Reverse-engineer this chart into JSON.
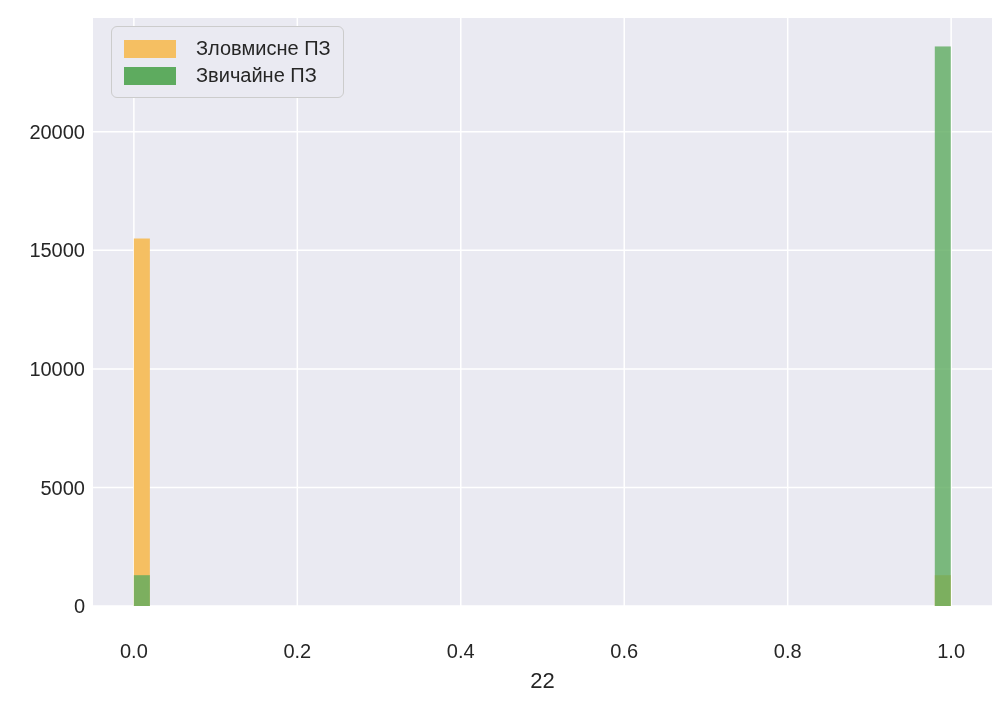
{
  "chart_data": {
    "type": "histogram",
    "xlabel": "22",
    "bins": [
      0,
      0.02,
      0.04,
      0.06,
      0.08,
      0.1,
      0.12,
      0.14,
      0.16,
      0.18,
      0.2,
      0.22,
      0.24,
      0.26,
      0.28,
      0.3,
      0.32,
      0.34,
      0.36,
      0.38,
      0.4,
      0.42,
      0.44,
      0.46,
      0.48,
      0.5,
      0.52,
      0.54,
      0.56,
      0.58,
      0.6,
      0.62,
      0.64,
      0.66,
      0.68,
      0.7,
      0.72,
      0.74,
      0.76,
      0.78,
      0.8,
      0.82,
      0.84,
      0.86,
      0.88,
      0.9,
      0.92,
      0.94,
      0.96,
      0.98,
      1
    ],
    "series": [
      {
        "name": "Зловмисне ПЗ",
        "color": "#f5bf62",
        "values": [
          15500,
          0,
          0,
          0,
          0,
          0,
          0,
          0,
          0,
          0,
          0,
          0,
          0,
          0,
          0,
          0,
          0,
          0,
          0,
          0,
          0,
          0,
          0,
          0,
          0,
          0,
          0,
          0,
          0,
          0,
          0,
          0,
          0,
          0,
          0,
          0,
          0,
          0,
          0,
          0,
          0,
          0,
          0,
          0,
          0,
          0,
          0,
          0,
          0,
          1300
        ]
      },
      {
        "name": "Звичайне ПЗ",
        "color": "#5eab5f",
        "values": [
          1300,
          0,
          0,
          0,
          0,
          0,
          0,
          0,
          0,
          0,
          0,
          0,
          0,
          0,
          0,
          0,
          0,
          0,
          0,
          0,
          0,
          0,
          0,
          0,
          0,
          0,
          0,
          0,
          0,
          0,
          0,
          0,
          0,
          0,
          0,
          0,
          0,
          0,
          0,
          0,
          0,
          0,
          0,
          0,
          0,
          0,
          0,
          0,
          0,
          23600
        ]
      }
    ],
    "xlim": [
      -0.05,
      1.05
    ],
    "xticks": [
      {
        "value": 0,
        "label": "0.0"
      },
      {
        "value": 0.2,
        "label": "0.2"
      },
      {
        "value": 0.4,
        "label": "0.4"
      },
      {
        "value": 0.6,
        "label": "0.6"
      },
      {
        "value": 0.8,
        "label": "0.8"
      },
      {
        "value": 1,
        "label": "1.0"
      }
    ],
    "ylim": [
      0,
      24800
    ],
    "yticks": [
      0,
      5000,
      10000,
      15000,
      20000
    ],
    "grid": true,
    "legend": "top left"
  }
}
